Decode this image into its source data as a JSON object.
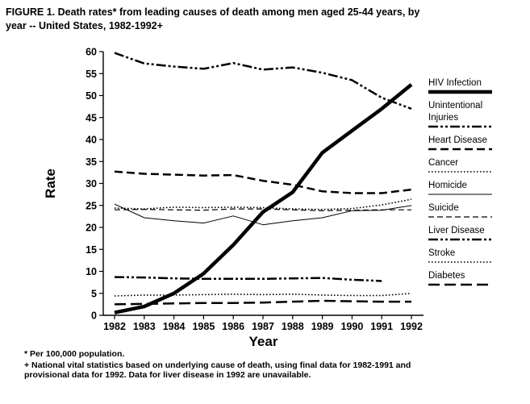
{
  "page": {
    "title_line1": "FIGURE 1.  Death rates* from leading causes of death among men aged 25-44 years, by",
    "title_line2": "year -- United States, 1982-1992+",
    "footnote1": "* Per 100,000 population.",
    "footnote2_line1": "+ National vital statistics based on underlying cause of death, using final data for 1982-1991 and",
    "footnote2_line2": "provisional data for 1992.  Data for liver disease in 1992 are unavailable."
  },
  "chart_data": {
    "type": "line",
    "xlabel": "Year",
    "ylabel": "Rate",
    "ylim": [
      0,
      60
    ],
    "yticks": [
      0,
      5,
      10,
      15,
      20,
      25,
      30,
      35,
      40,
      45,
      50,
      55,
      60
    ],
    "x": [
      1982,
      1983,
      1984,
      1985,
      1986,
      1987,
      1988,
      1989,
      1990,
      1991,
      1992
    ],
    "legend_position": "right",
    "series": [
      {
        "name": "HIV Infection",
        "style": "solid-thick",
        "values": [
          0.6,
          2.0,
          5.0,
          9.5,
          16.0,
          23.5,
          28.0,
          37.0,
          42.0,
          47.0,
          52.5
        ]
      },
      {
        "name": "Unintentional Injuries",
        "style": "dashdotdot",
        "values": [
          59.7,
          57.3,
          56.6,
          56.1,
          57.4,
          55.9,
          56.4,
          55.2,
          53.5,
          49.5,
          47.0
        ]
      },
      {
        "name": "Heart Disease",
        "style": "dashed",
        "values": [
          32.7,
          32.2,
          32.0,
          31.8,
          31.9,
          30.6,
          29.7,
          28.2,
          27.8,
          27.8,
          28.6
        ]
      },
      {
        "name": "Cancer",
        "style": "dotted",
        "values": [
          24.4,
          24.2,
          24.6,
          24.5,
          24.6,
          24.5,
          24.2,
          24.1,
          24.3,
          25.1,
          26.4
        ]
      },
      {
        "name": "Homicide",
        "style": "solid-thin",
        "values": [
          25.3,
          22.2,
          21.5,
          21.0,
          22.6,
          20.6,
          21.5,
          22.2,
          23.8,
          23.9,
          25.0
        ]
      },
      {
        "name": "Suicide",
        "style": "dashed-thin",
        "values": [
          24.0,
          24.1,
          24.0,
          23.9,
          24.2,
          24.2,
          24.0,
          23.8,
          23.9,
          24.0,
          24.0
        ]
      },
      {
        "name": "Liver Disease",
        "style": "dashdotdot",
        "values": [
          8.7,
          8.6,
          8.4,
          8.3,
          8.3,
          8.3,
          8.4,
          8.5,
          8.1,
          7.8,
          null
        ]
      },
      {
        "name": "Stroke",
        "style": "dotted",
        "values": [
          4.4,
          4.6,
          4.6,
          4.7,
          4.8,
          4.7,
          4.8,
          4.6,
          4.5,
          4.5,
          5.0
        ]
      },
      {
        "name": "Diabetes",
        "style": "longdash",
        "values": [
          2.5,
          2.6,
          2.7,
          2.8,
          2.8,
          2.9,
          3.1,
          3.3,
          3.2,
          3.1,
          3.1
        ]
      }
    ],
    "legend": [
      {
        "label_lines": [
          "HIV Infection"
        ],
        "style": "solid-thick"
      },
      {
        "label_lines": [
          "Unintentional",
          "Injuries"
        ],
        "style": "dashdotdot"
      },
      {
        "label_lines": [
          "Heart Disease"
        ],
        "style": "dashed"
      },
      {
        "label_lines": [
          "Cancer"
        ],
        "style": "dotted"
      },
      {
        "label_lines": [
          "Homicide"
        ],
        "style": "solid-thin"
      },
      {
        "label_lines": [
          "Suicide"
        ],
        "style": "dashed-thin"
      },
      {
        "label_lines": [
          "Liver Disease"
        ],
        "style": "dashdotdot"
      },
      {
        "label_lines": [
          "Stroke"
        ],
        "style": "dotted"
      },
      {
        "label_lines": [
          "Diabetes"
        ],
        "style": "longdash"
      }
    ]
  }
}
